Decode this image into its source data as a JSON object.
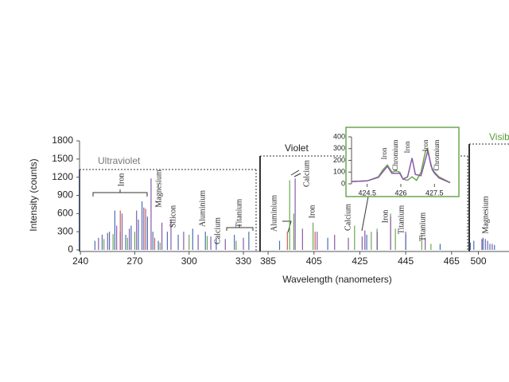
{
  "chart_data": [
    {
      "type": "spectrum",
      "region": "Ultraviolet",
      "y_label": "Intensity (counts)",
      "xlim": [
        239.5,
        337
      ],
      "xticks": [
        240,
        270,
        300,
        330
      ],
      "ylim": [
        0,
        1800
      ],
      "yticks": [
        0,
        300,
        600,
        900,
        1200,
        1500,
        1800
      ],
      "annotations": [
        "Iron",
        "Magnesium",
        "Silicon",
        "Aluminium",
        "Calcium",
        "Titanium"
      ],
      "series": [
        {
          "color": "#4a6fb5",
          "x": [
            248,
            252,
            256,
            259,
            262,
            265,
            268,
            272,
            274,
            277,
            280,
            283,
            288,
            294,
            302,
            309,
            315,
            325,
            333
          ],
          "values": [
            150,
            250,
            300,
            650,
            300,
            250,
            400,
            500,
            800,
            550,
            300,
            150,
            300,
            250,
            350,
            300,
            200,
            250,
            300
          ]
        },
        {
          "color": "#8a5aa8",
          "x": [
            250,
            255,
            260,
            263,
            267,
            271,
            275,
            279,
            285,
            290,
            297,
            305,
            312,
            320,
            330
          ],
          "values": [
            200,
            280,
            400,
            600,
            350,
            650,
            700,
            1180,
            450,
            500,
            300,
            250,
            220,
            180,
            200
          ]
        },
        {
          "color": "#c0605a",
          "x": [
            262,
            276,
            281
          ],
          "values": [
            650,
            680,
            200
          ]
        },
        {
          "color": "#6aa84f",
          "x": [
            253,
            258,
            266,
            270,
            284,
            300,
            310,
            326
          ],
          "values": [
            180,
            260,
            200,
            300,
            120,
            250,
            230,
            150
          ]
        }
      ]
    },
    {
      "type": "spectrum",
      "region": "Violet",
      "x_label": "Wavelength  (nanometers)",
      "xlim": [
        381.5,
        472
      ],
      "xticks": [
        385,
        405,
        425,
        445,
        465
      ],
      "ylim": [
        0,
        1800
      ],
      "annotations": [
        "Aluminium",
        "Calcium",
        "Iron",
        "Calcium",
        "Iron",
        "Titanium",
        "Titanium"
      ],
      "series": [
        {
          "color": "#6aa84f",
          "x": [
            394.4,
            396.2,
            404.6,
            422.7,
            430,
            432.5,
            438.4,
            440.5,
            452,
            456
          ],
          "values": [
            1150,
            600,
            450,
            400,
            300,
            350,
            600,
            350,
            250,
            100
          ]
        },
        {
          "color": "#8a5aa8",
          "x": [
            396.8,
            400,
            406.4,
            414,
            420,
            426,
            427.2,
            432.6,
            438.4,
            445,
            453.5
          ],
          "values": [
            1180,
            350,
            300,
            250,
            200,
            220,
            320,
            300,
            550,
            300,
            200
          ]
        },
        {
          "color": "#c0605a",
          "x": [
            393.4,
            405.5
          ],
          "values": [
            300,
            300
          ]
        },
        {
          "color": "#4a6fb5",
          "x": [
            390,
            411,
            428,
            445,
            460
          ],
          "values": [
            150,
            200,
            250,
            250,
            100
          ]
        }
      ]
    },
    {
      "type": "spectrum",
      "region": "Visible",
      "xlim": [
        496,
        513.3
      ],
      "xticks": [
        500
      ],
      "ylim": [
        0,
        1800
      ],
      "annotations": [
        "Magnesium"
      ],
      "series": [
        {
          "color": "#4a6fb5",
          "x": [
            496.5,
            498,
            502,
            503,
            505,
            507
          ],
          "values": [
            120,
            150,
            200,
            180,
            100,
            80
          ]
        },
        {
          "color": "#8a5aa8",
          "x": [
            501.5,
            504,
            506
          ],
          "values": [
            180,
            150,
            100
          ]
        }
      ]
    },
    {
      "type": "line",
      "xlim": [
        423.8,
        428.2
      ],
      "xticks": [
        424.5,
        426,
        427.5
      ],
      "ylim": [
        0,
        400
      ],
      "yticks": [
        0,
        100,
        200,
        300,
        400
      ],
      "annotations": [
        "Iron",
        "Chromium",
        "Iron",
        "Iron",
        "Chromium"
      ],
      "series": [
        {
          "color": "#6aa84f",
          "x": [
            423.8,
            424.5,
            425.0,
            425.2,
            425.4,
            425.6,
            425.8,
            425.95,
            426.1,
            426.3,
            426.5,
            426.7,
            426.9,
            427.1,
            427.2,
            427.35,
            427.5,
            427.7,
            428.2
          ],
          "values": [
            20,
            25,
            60,
            120,
            160,
            100,
            110,
            100,
            40,
            30,
            60,
            30,
            100,
            280,
            300,
            150,
            100,
            60,
            10
          ]
        },
        {
          "color": "#8a5aa8",
          "x": [
            423.8,
            424.5,
            425.0,
            425.4,
            425.6,
            425.95,
            426.1,
            426.3,
            426.5,
            426.65,
            426.9,
            427.2,
            427.4,
            427.5,
            427.7,
            428.2
          ],
          "values": [
            20,
            25,
            55,
            150,
            90,
            90,
            40,
            60,
            220,
            80,
            70,
            280,
            120,
            90,
            50,
            10
          ]
        }
      ]
    }
  ]
}
